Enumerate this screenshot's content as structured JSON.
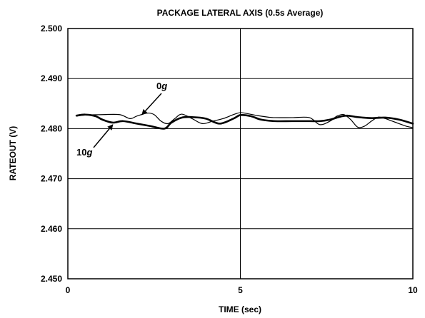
{
  "chart_data": {
    "type": "line",
    "title": "PACKAGE LATERAL AXIS (0.5s Average)",
    "xlabel": "TIME (sec)",
    "ylabel": "RATEOUT (V)",
    "xlim": [
      0,
      10
    ],
    "ylim": [
      2.45,
      2.5
    ],
    "xticks": [
      0,
      5,
      10
    ],
    "xtick_labels": [
      "0",
      "5",
      "10"
    ],
    "yticks": [
      2.45,
      2.46,
      2.47,
      2.48,
      2.49,
      2.5
    ],
    "ytick_labels": [
      "2.450",
      "2.460",
      "2.470",
      "2.480",
      "2.490",
      "2.500"
    ],
    "grid": true,
    "series": [
      {
        "name": "0g",
        "line": "thin",
        "x": [
          0.25,
          0.5,
          1.0,
          1.5,
          1.8,
          2.0,
          2.3,
          2.5,
          2.7,
          2.9,
          3.1,
          3.3,
          3.6,
          3.9,
          4.2,
          4.5,
          4.8,
          5.0,
          5.2,
          5.5,
          5.8,
          6.0,
          6.5,
          7.0,
          7.3,
          7.6,
          7.8,
          8.0,
          8.2,
          8.4,
          8.6,
          8.8,
          9.0,
          9.2,
          9.4,
          9.6,
          9.8,
          10.0
        ],
        "y": [
          2.4825,
          2.4827,
          2.4828,
          2.4828,
          2.482,
          2.4825,
          2.4831,
          2.4828,
          2.4815,
          2.481,
          2.482,
          2.4829,
          2.482,
          2.481,
          2.4815,
          2.482,
          2.4828,
          2.4832,
          2.483,
          2.4826,
          2.4823,
          2.4822,
          2.4822,
          2.4822,
          2.4808,
          2.4815,
          2.4825,
          2.4828,
          2.4818,
          2.4803,
          2.4805,
          2.4815,
          2.4823,
          2.482,
          2.4815,
          2.481,
          2.4805,
          2.4802
        ]
      },
      {
        "name": "10g",
        "line": "thick",
        "x": [
          0.25,
          0.5,
          0.8,
          1.0,
          1.3,
          1.6,
          2.0,
          2.4,
          2.8,
          3.0,
          3.3,
          3.6,
          4.0,
          4.4,
          4.8,
          5.0,
          5.3,
          5.6,
          6.0,
          6.5,
          7.0,
          7.3,
          7.6,
          7.9,
          8.1,
          8.4,
          8.8,
          9.2,
          9.6,
          10.0
        ],
        "y": [
          2.4826,
          2.4828,
          2.4825,
          2.4818,
          2.4812,
          2.4815,
          2.481,
          2.4805,
          2.48,
          2.4812,
          2.4822,
          2.4823,
          2.482,
          2.481,
          2.482,
          2.4827,
          2.4825,
          2.4818,
          2.4815,
          2.4815,
          2.4815,
          2.4815,
          2.4818,
          2.4824,
          2.4826,
          2.4823,
          2.4821,
          2.4822,
          2.4818,
          2.481
        ]
      }
    ],
    "annotations": [
      {
        "label_parts": [
          "0",
          "g"
        ],
        "series": "0g",
        "arrow_to": [
          2.15,
          2.4828
        ]
      },
      {
        "label_parts": [
          "10",
          "g"
        ],
        "series": "10g",
        "arrow_to": [
          1.3,
          2.4812
        ]
      }
    ]
  }
}
